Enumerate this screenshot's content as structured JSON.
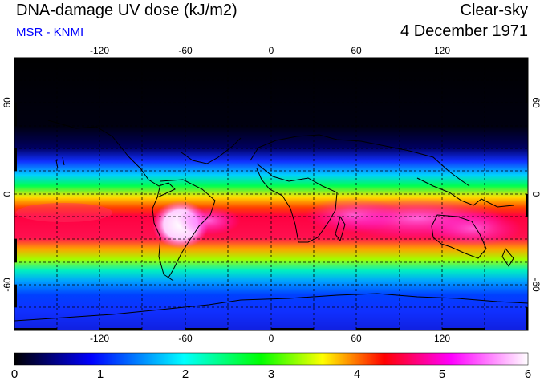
{
  "header": {
    "title": "DNA-damage UV dose (kJ/m2)",
    "subtitle": "MSR - KNMI",
    "condition": "Clear-sky",
    "date": "4 December 1971"
  },
  "map": {
    "lon_ticks": [
      "-120",
      "-60",
      "0",
      "60",
      "120"
    ],
    "lat_ticks": [
      "60",
      "0",
      "-60"
    ],
    "gridlines": "dashed"
  },
  "colorbar": {
    "labels": [
      "0",
      "1",
      "2",
      "3",
      "4",
      "5",
      "6"
    ],
    "colors": [
      "#000000",
      "#0000ff",
      "#00ffff",
      "#00ff00",
      "#ffff00",
      "#ff0000",
      "#ff00ff",
      "#ffffff"
    ]
  }
}
